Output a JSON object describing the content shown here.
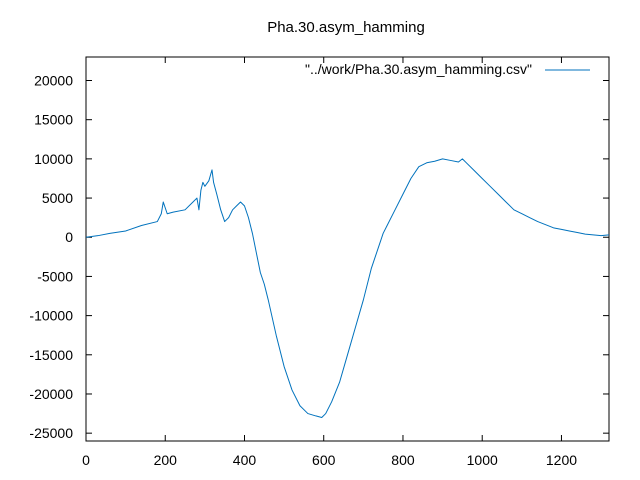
{
  "chart_data": {
    "type": "line",
    "title": "Pha.30.asym_hamming",
    "xlabel": "",
    "ylabel": "",
    "xlim": [
      0,
      1320
    ],
    "ylim": [
      -26000,
      23000
    ],
    "xticks": [
      0,
      200,
      400,
      600,
      800,
      1000,
      1200
    ],
    "yticks": [
      -25000,
      -20000,
      -15000,
      -10000,
      -5000,
      0,
      5000,
      10000,
      15000,
      20000
    ],
    "grid": false,
    "legend_position": "top-right",
    "colors": {
      "series": "#0072bd",
      "axes": "#000000"
    },
    "series": [
      {
        "name": "\"../work/Pha.30.asym_hamming.csv\"",
        "x": [
          0,
          30,
          60,
          100,
          140,
          180,
          190,
          195,
          205,
          220,
          250,
          270,
          280,
          285,
          290,
          295,
          300,
          310,
          318,
          322,
          330,
          340,
          350,
          360,
          370,
          380,
          390,
          400,
          410,
          420,
          430,
          440,
          450,
          460,
          480,
          500,
          520,
          540,
          560,
          580,
          595,
          605,
          620,
          640,
          660,
          680,
          700,
          720,
          740,
          750,
          760,
          780,
          800,
          820,
          840,
          860,
          880,
          900,
          920,
          940,
          950,
          960,
          980,
          1000,
          1020,
          1040,
          1060,
          1080,
          1100,
          1120,
          1140,
          1160,
          1180,
          1200,
          1220,
          1240,
          1260,
          1280,
          1300,
          1320
        ],
        "y": [
          0,
          200,
          500,
          800,
          1500,
          2000,
          3000,
          4500,
          3000,
          3200,
          3500,
          4500,
          5000,
          3500,
          6000,
          7000,
          6500,
          7200,
          8600,
          7000,
          5500,
          3500,
          2000,
          2500,
          3500,
          4000,
          4500,
          4000,
          2500,
          500,
          -2000,
          -4500,
          -6000,
          -8000,
          -12500,
          -16500,
          -19500,
          -21500,
          -22500,
          -22800,
          -23000,
          -22500,
          -21000,
          -18500,
          -15000,
          -11500,
          -8000,
          -4000,
          -1000,
          500,
          1500,
          3500,
          5500,
          7500,
          9000,
          9500,
          9700,
          10000,
          9800,
          9600,
          10000,
          9500,
          8500,
          7500,
          6500,
          5500,
          4500,
          3500,
          3000,
          2500,
          2000,
          1600,
          1200,
          1000,
          800,
          600,
          400,
          300,
          200,
          300
        ]
      }
    ]
  }
}
